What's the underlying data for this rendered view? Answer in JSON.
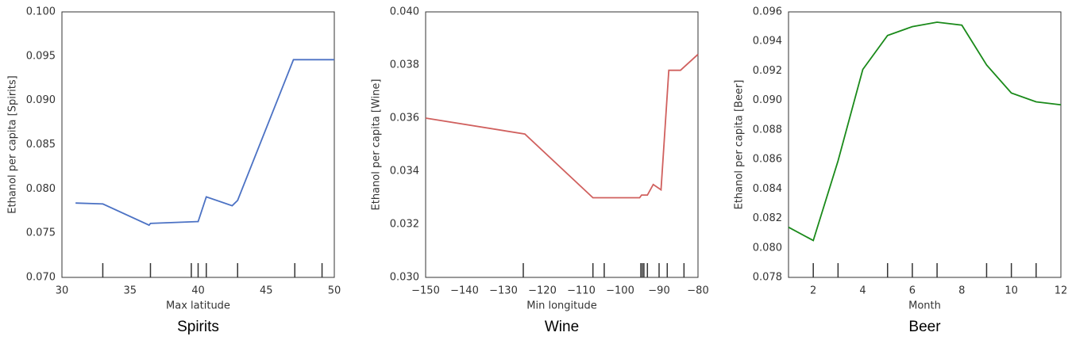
{
  "chart_data": [
    {
      "type": "line",
      "caption": "Spirits",
      "xlabel": "Max latitude",
      "ylabel": "Ethanol per capita [Spirits]",
      "x": [
        31,
        33,
        36.4,
        36.5,
        39.9,
        40.0,
        40.6,
        42.5,
        42.9,
        47.0,
        50
      ],
      "series": [
        {
          "color": "#4c72c4",
          "values": [
            0.0784,
            0.0783,
            0.0759,
            0.0761,
            0.0763,
            0.0763,
            0.0791,
            0.0781,
            0.0787,
            0.0946,
            0.0946
          ]
        }
      ],
      "rug": [
        33.0,
        36.5,
        39.5,
        40.0,
        40.6,
        42.9,
        47.1,
        49.1
      ],
      "xlim": [
        30,
        50
      ],
      "xticks": [
        30,
        35,
        40,
        45,
        50
      ],
      "ylim": [
        0.07,
        0.1
      ],
      "yticks": [
        {
          "value": 0.07,
          "label": "0.070"
        },
        {
          "value": 0.075,
          "label": "0.075"
        },
        {
          "value": 0.08,
          "label": "0.080"
        },
        {
          "value": 0.085,
          "label": "0.085"
        },
        {
          "value": 0.09,
          "label": "0.090"
        },
        {
          "value": 0.095,
          "label": "0.095"
        },
        {
          "value": 0.1,
          "label": "0.100"
        }
      ],
      "grid": false
    },
    {
      "type": "line",
      "caption": "Wine",
      "xlabel": "Min longitude",
      "ylabel": "Ethanol per capita [Wine]",
      "x": [
        -150,
        -124.5,
        -107,
        -95,
        -94.5,
        -93,
        -91.5,
        -89.5,
        -87.5,
        -84.5,
        -80
      ],
      "series": [
        {
          "color": "#d0605e",
          "values": [
            0.036,
            0.0354,
            0.033,
            0.033,
            0.0331,
            0.0331,
            0.0335,
            0.0333,
            0.0378,
            0.0378,
            0.0384
          ]
        }
      ],
      "rug": [
        -124.9,
        -107.0,
        -104.1,
        -94.7,
        -94.3,
        -93.9,
        -93.0,
        -90.0,
        -87.9,
        -83.6
      ],
      "xlim": [
        -150,
        -80
      ],
      "xticks": [
        {
          "value": -150,
          "label": "−150"
        },
        {
          "value": -140,
          "label": "−140"
        },
        {
          "value": -130,
          "label": "−130"
        },
        {
          "value": -120,
          "label": "−120"
        },
        {
          "value": -110,
          "label": "−110"
        },
        {
          "value": -100,
          "label": "−100"
        },
        {
          "value": -90,
          "label": "−90"
        },
        {
          "value": -80,
          "label": "−80"
        }
      ],
      "ylim": [
        0.03,
        0.04
      ],
      "yticks": [
        {
          "value": 0.03,
          "label": "0.030"
        },
        {
          "value": 0.032,
          "label": "0.032"
        },
        {
          "value": 0.034,
          "label": "0.034"
        },
        {
          "value": 0.036,
          "label": "0.036"
        },
        {
          "value": 0.038,
          "label": "0.038"
        },
        {
          "value": 0.04,
          "label": "0.040"
        }
      ],
      "grid": false
    },
    {
      "type": "line",
      "caption": "Beer",
      "xlabel": "Month",
      "ylabel": "Ethanol per capita [Beer]",
      "x": [
        1,
        2,
        3,
        4,
        5,
        6,
        7,
        8,
        9,
        10,
        11,
        12
      ],
      "series": [
        {
          "color": "#1a8a1a",
          "values": [
            0.0814,
            0.0805,
            0.0859,
            0.0921,
            0.0944,
            0.095,
            0.0953,
            0.0951,
            0.0924,
            0.0905,
            0.0899,
            0.0897
          ]
        }
      ],
      "rug": [
        2,
        3,
        5,
        6,
        7,
        9,
        10,
        11
      ],
      "xlim": [
        1,
        12
      ],
      "xticks": [
        2,
        4,
        6,
        8,
        10,
        12
      ],
      "ylim": [
        0.078,
        0.096
      ],
      "yticks": [
        {
          "value": 0.078,
          "label": "0.078"
        },
        {
          "value": 0.08,
          "label": "0.080"
        },
        {
          "value": 0.082,
          "label": "0.082"
        },
        {
          "value": 0.084,
          "label": "0.084"
        },
        {
          "value": 0.086,
          "label": "0.086"
        },
        {
          "value": 0.088,
          "label": "0.088"
        },
        {
          "value": 0.09,
          "label": "0.090"
        },
        {
          "value": 0.092,
          "label": "0.092"
        },
        {
          "value": 0.094,
          "label": "0.094"
        },
        {
          "value": 0.096,
          "label": "0.096"
        }
      ],
      "grid": false
    }
  ]
}
